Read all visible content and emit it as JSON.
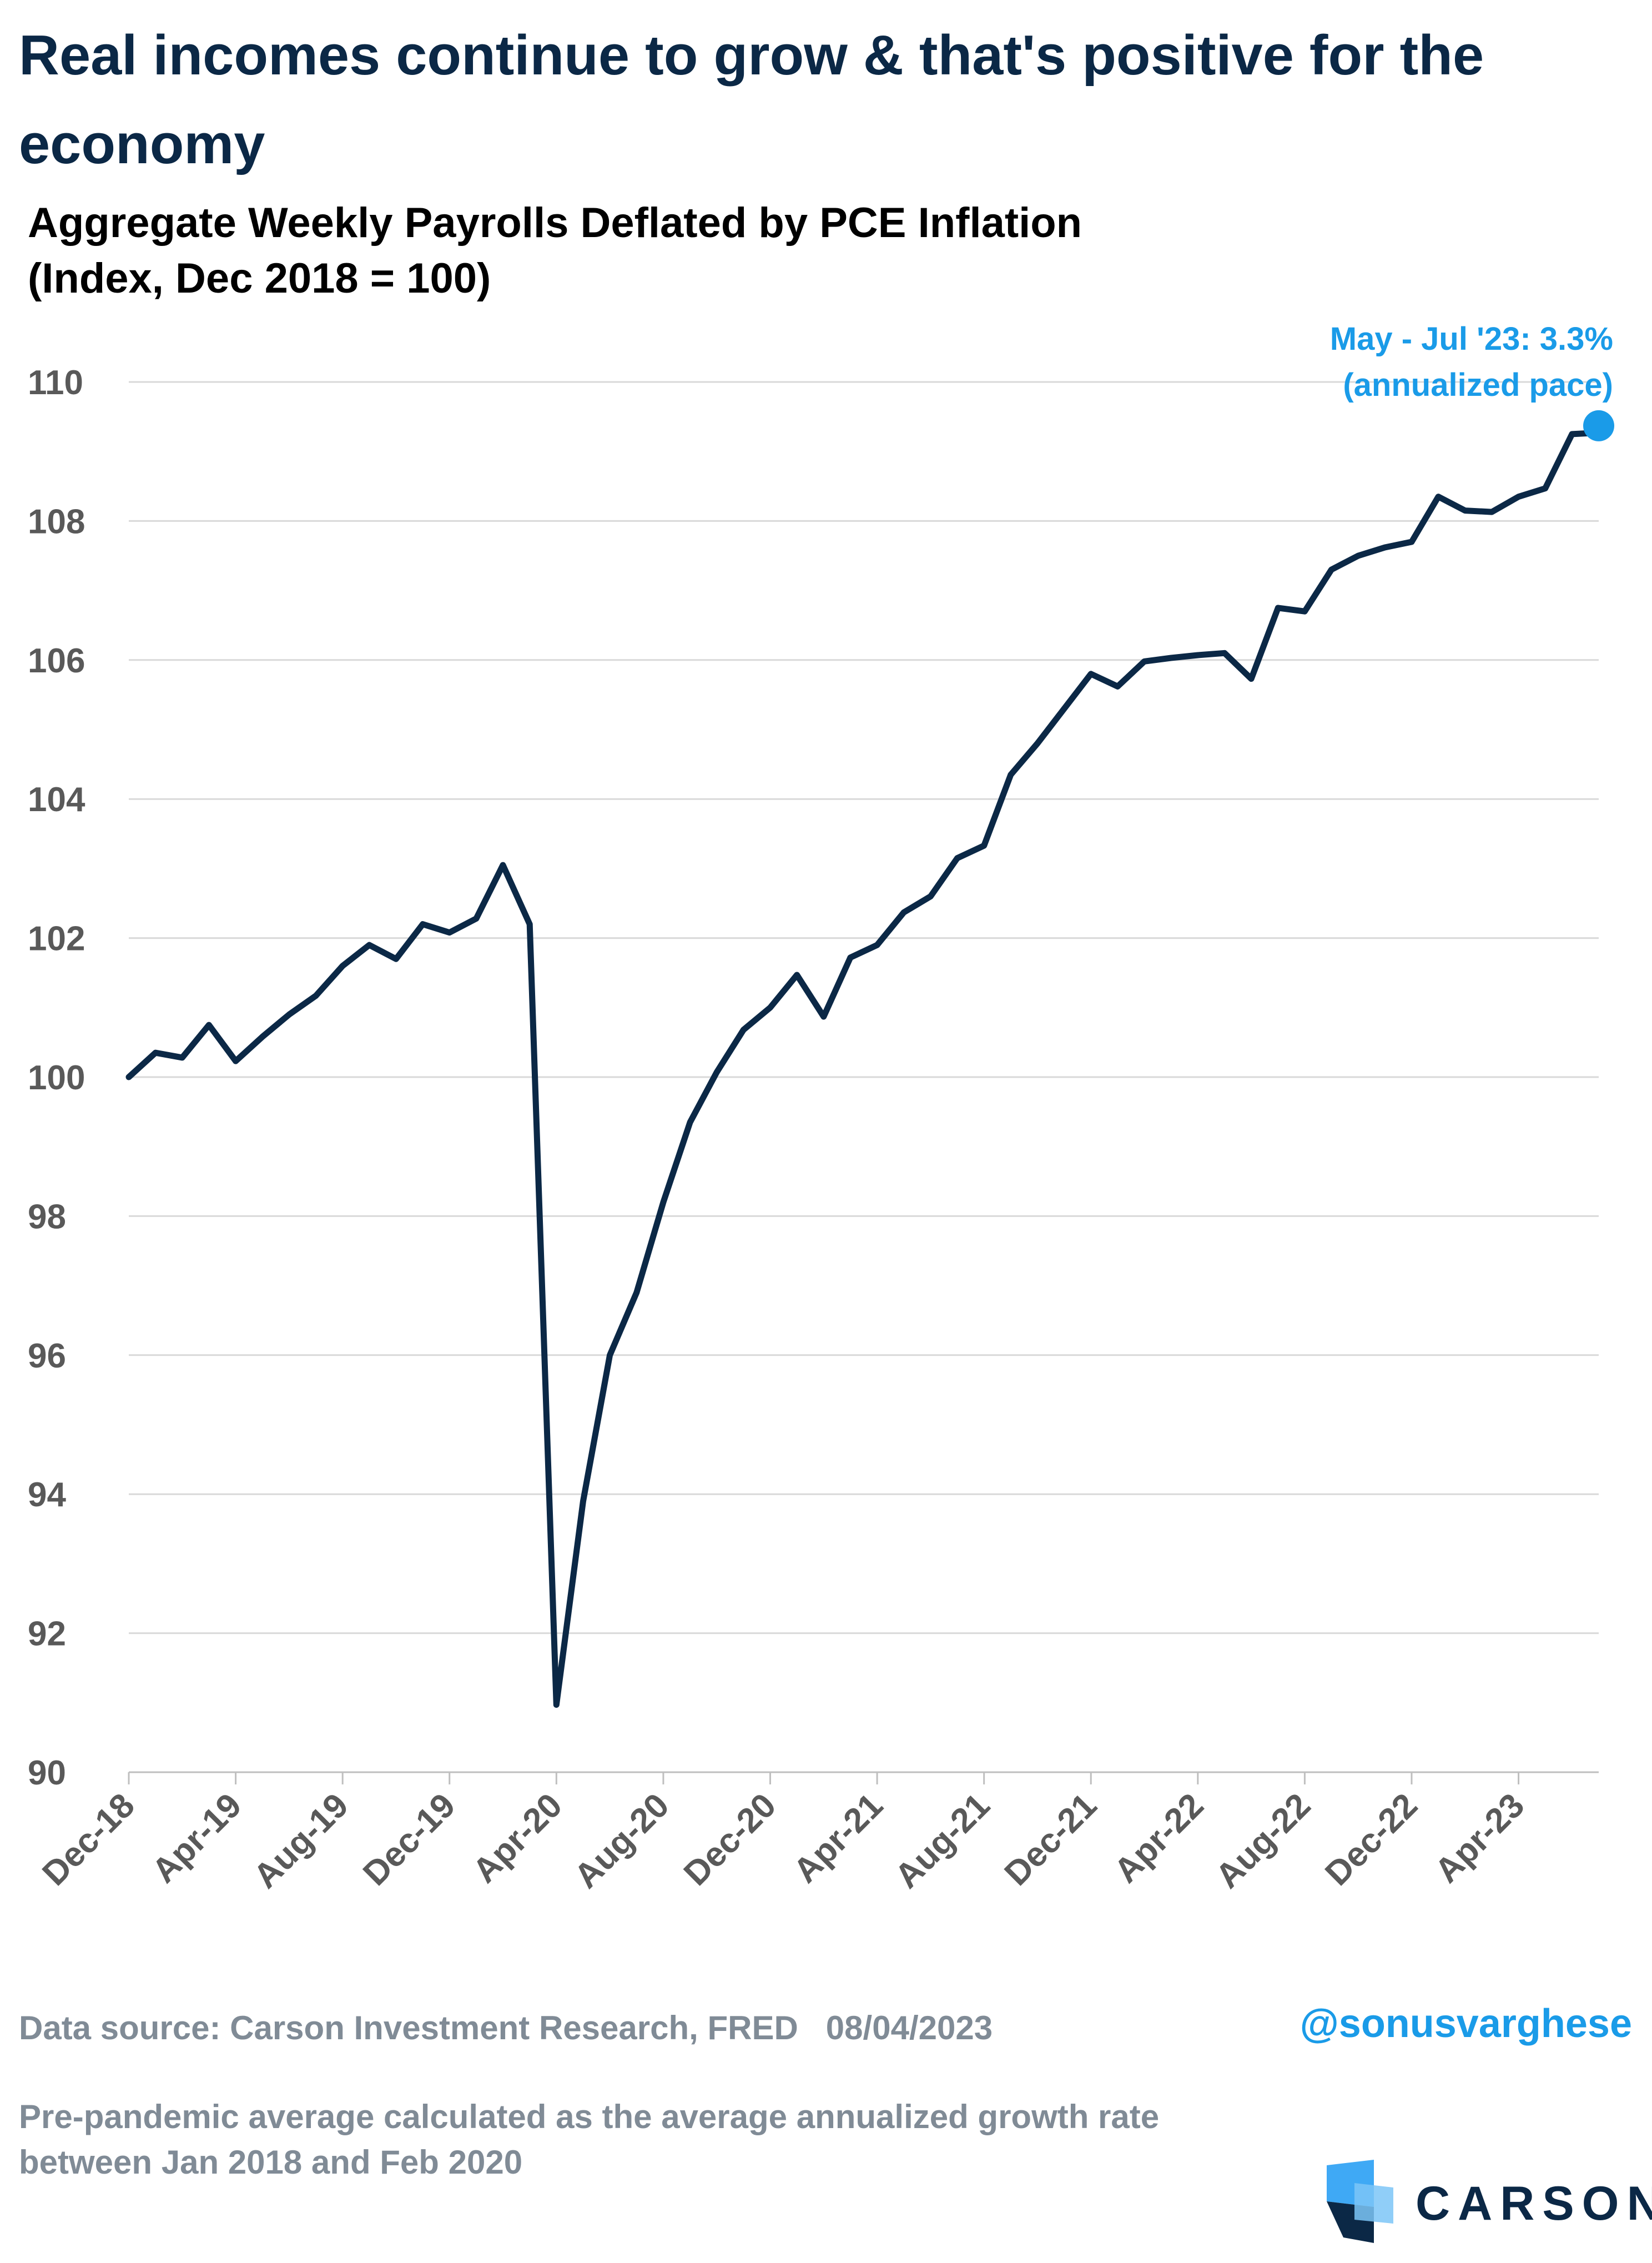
{
  "headline": "Real incomes continue to grow & that's positive for the economy",
  "chart_data": {
    "type": "line",
    "title_lines": [
      "Aggregate Weekly Payrolls Deflated by PCE Inflation",
      "(Index, Dec 2018 = 100)"
    ],
    "xlabel": "",
    "ylabel": "",
    "ylim": [
      90,
      110
    ],
    "yticks": [
      "90",
      "92",
      "94",
      "96",
      "98",
      "100",
      "102",
      "104",
      "106",
      "108",
      "110"
    ],
    "xticks": [
      "Dec-18",
      "Apr-19",
      "Aug-19",
      "Dec-19",
      "Apr-20",
      "Aug-20",
      "Dec-20",
      "Apr-21",
      "Aug-21",
      "Dec-21",
      "Apr-22",
      "Aug-22",
      "Dec-22",
      "Apr-23"
    ],
    "grid": true,
    "x": [
      "Dec-18",
      "Jan-19",
      "Feb-19",
      "Mar-19",
      "Apr-19",
      "May-19",
      "Jun-19",
      "Jul-19",
      "Aug-19",
      "Sep-19",
      "Oct-19",
      "Nov-19",
      "Dec-19",
      "Jan-20",
      "Feb-20",
      "Mar-20",
      "Apr-20",
      "May-20",
      "Jun-20",
      "Jul-20",
      "Aug-20",
      "Sep-20",
      "Oct-20",
      "Nov-20",
      "Dec-20",
      "Jan-21",
      "Feb-21",
      "Mar-21",
      "Apr-21",
      "May-21",
      "Jun-21",
      "Jul-21",
      "Aug-21",
      "Sep-21",
      "Oct-21",
      "Nov-21",
      "Dec-21",
      "Jan-22",
      "Feb-22",
      "Mar-22",
      "Apr-22",
      "May-22",
      "Jun-22",
      "Jul-22",
      "Aug-22",
      "Sep-22",
      "Oct-22",
      "Nov-22",
      "Dec-22",
      "Jan-23",
      "Feb-23",
      "Mar-23",
      "Apr-23",
      "May-23",
      "Jun-23",
      "Jul-23"
    ],
    "series": [
      {
        "values": [
          100.0,
          100.35,
          100.28,
          100.75,
          100.23,
          100.58,
          100.9,
          101.17,
          101.6,
          101.9,
          101.7,
          102.2,
          102.08,
          102.28,
          103.05,
          102.2,
          90.97,
          93.9,
          96.0,
          96.9,
          98.2,
          99.35,
          100.07,
          100.68,
          101.0,
          101.47,
          100.87,
          101.72,
          101.9,
          102.37,
          102.6,
          103.15,
          103.33,
          104.35,
          104.8,
          105.3,
          105.8,
          105.62,
          105.98,
          106.03,
          106.07,
          106.1,
          105.73,
          106.75,
          106.7,
          107.3,
          107.5,
          107.62,
          107.7,
          108.35,
          108.15,
          108.13,
          108.35,
          108.47,
          109.25,
          109.27
        ]
      }
    ],
    "annotation": {
      "lines": [
        "May - Jul '23: 3.3%",
        "(annualized pace)"
      ],
      "x": "Jul-23",
      "y": 109.37
    },
    "colors": {
      "line": "#0b2846",
      "accent": "#1a9be8",
      "grid": "#d9d9d9",
      "axis_text": "#595959"
    }
  },
  "footer": {
    "source": "Data source: Carson Investment Research, FRED   08/04/2023",
    "note": "Pre-pandemic average calculated as the average annualized growth rate between Jan 2018 and Feb 2020",
    "handle": "@sonusvarghese"
  },
  "logo": {
    "wordmark": "CARSON"
  }
}
